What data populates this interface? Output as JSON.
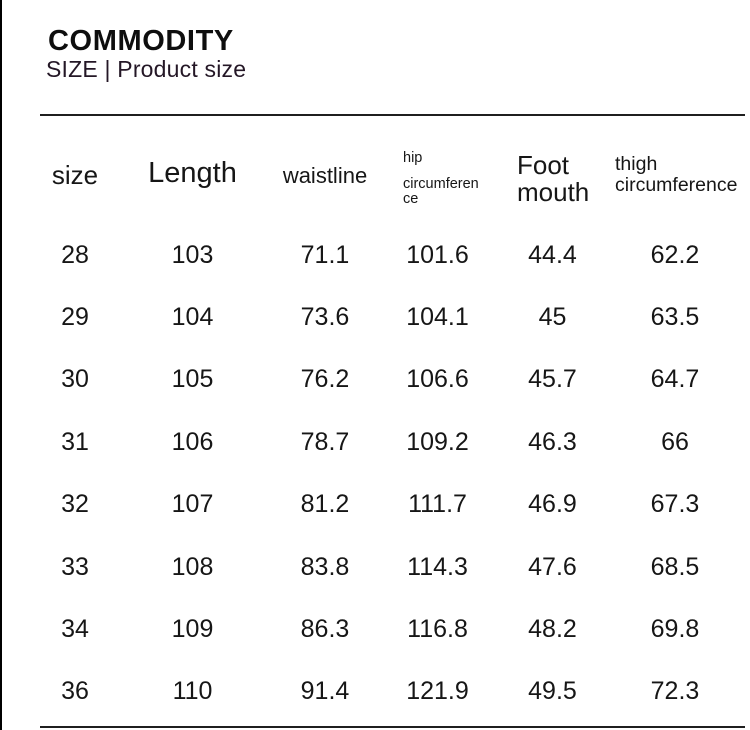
{
  "header": {
    "title": "COMMODITY",
    "subtitle": "SIZE | Product size"
  },
  "table": {
    "header": {
      "size": "size",
      "length": "Length",
      "waistline": "waistline",
      "hip_line1": "hip",
      "hip_line2": "circumference",
      "foot_line1": "Foot",
      "foot_line2": "mouth",
      "thigh_line1": "thigh",
      "thigh_line2": "circumference"
    },
    "columns": [
      "size",
      "Length",
      "waistline",
      "hip circumference",
      "Foot mouth",
      "thigh circumference"
    ],
    "rows": [
      [
        "28",
        "103",
        "71.1",
        "101.6",
        "44.4",
        "62.2"
      ],
      [
        "29",
        "104",
        "73.6",
        "104.1",
        "45",
        "63.5"
      ],
      [
        "30",
        "105",
        "76.2",
        "106.6",
        "45.7",
        "64.7"
      ],
      [
        "31",
        "106",
        "78.7",
        "109.2",
        "46.3",
        "66"
      ],
      [
        "32",
        "107",
        "81.2",
        "111.7",
        "46.9",
        "67.3"
      ],
      [
        "33",
        "108",
        "83.8",
        "114.3",
        "47.6",
        "68.5"
      ],
      [
        "34",
        "109",
        "86.3",
        "116.8",
        "48.2",
        "69.8"
      ],
      [
        "36",
        "110",
        "91.4",
        "121.9",
        "49.5",
        "72.3"
      ]
    ]
  },
  "colors": {
    "text": "#161616",
    "rule": "#1f1f1f",
    "left_border": "#000000",
    "background": "#ffffff"
  }
}
